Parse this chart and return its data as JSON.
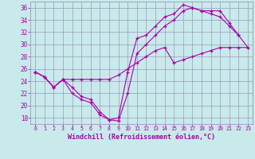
{
  "x": [
    0,
    1,
    2,
    3,
    4,
    5,
    6,
    7,
    8,
    9,
    10,
    11,
    12,
    13,
    14,
    15,
    16,
    17,
    18,
    19,
    20,
    21,
    22,
    23
  ],
  "line1": [
    25.5,
    24.7,
    23.0,
    24.3,
    24.3,
    24.3,
    24.3,
    24.3,
    24.3,
    25.0,
    26.0,
    27.0,
    28.0,
    29.0,
    29.5,
    27.0,
    27.5,
    28.0,
    28.5,
    29.0,
    29.5,
    29.5,
    29.5,
    29.5
  ],
  "line2": [
    25.5,
    24.7,
    23.0,
    24.3,
    23.0,
    21.5,
    21.0,
    19.0,
    17.7,
    17.5,
    22.0,
    28.5,
    30.0,
    31.5,
    33.0,
    34.0,
    35.5,
    36.0,
    35.5,
    35.0,
    34.5,
    33.0,
    31.5,
    null
  ],
  "line3": [
    25.5,
    24.7,
    23.0,
    24.3,
    22.0,
    21.0,
    20.5,
    18.5,
    17.7,
    18.0,
    25.5,
    31.0,
    31.5,
    33.0,
    34.5,
    35.0,
    36.5,
    36.0,
    35.5,
    35.5,
    35.5,
    33.5,
    31.5,
    29.5
  ],
  "color": "#aa00aa",
  "bg_color": "#c8eaea",
  "grid_color": "#9999bb",
  "ylim": [
    17,
    37
  ],
  "yticks": [
    18,
    20,
    22,
    24,
    26,
    28,
    30,
    32,
    34,
    36
  ],
  "xlabel": "Windchill (Refroidissement éolien,°C)"
}
